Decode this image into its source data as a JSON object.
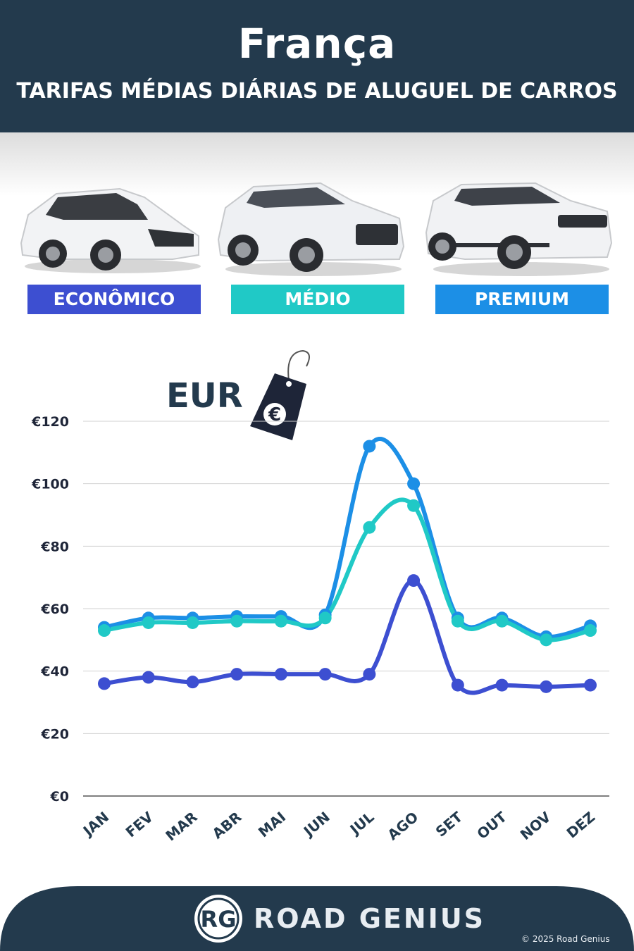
{
  "header": {
    "title": "França",
    "subtitle": "TARIFAS MÉDIAS DIÁRIAS DE ALUGUEL DE CARROS"
  },
  "categories": [
    {
      "label": "ECONÔMICO",
      "color": "#3d4fd1"
    },
    {
      "label": "MÉDIO",
      "color": "#20c9c6"
    },
    {
      "label": "PREMIUM",
      "color": "#1c8fe6"
    }
  ],
  "currency": {
    "label": "EUR",
    "tag_symbol": "€"
  },
  "chart_data": {
    "type": "line",
    "categories": [
      "JAN",
      "FEV",
      "MAR",
      "ABR",
      "MAI",
      "JUN",
      "JUL",
      "AGO",
      "SET",
      "OUT",
      "NOV",
      "DEZ"
    ],
    "ylim": [
      0,
      120
    ],
    "yticks": [
      0,
      20,
      40,
      60,
      80,
      100,
      120
    ],
    "ytick_labels": [
      "€0",
      "€20",
      "€40",
      "€60",
      "€80",
      "€100",
      "€120"
    ],
    "grid": true,
    "series": [
      {
        "name": "ECONÔMICO",
        "color": "#3d4fd1",
        "values": [
          36,
          38,
          36.5,
          39,
          39,
          39,
          39,
          69,
          35.5,
          35.5,
          35,
          35.5
        ]
      },
      {
        "name": "MÉDIO",
        "color": "#20c9c6",
        "values": [
          53,
          55.5,
          55.5,
          56,
          56,
          57,
          86,
          93,
          56,
          56,
          50,
          53
        ]
      },
      {
        "name": "PREMIUM",
        "color": "#1c8fe6",
        "values": [
          54,
          57,
          57,
          57.5,
          57.5,
          58,
          112,
          100,
          57,
          57,
          51,
          54.5
        ]
      }
    ]
  },
  "footer": {
    "logo_initials": "RG",
    "brand": "ROAD GENIUS",
    "copyright": "© 2025 Road Genius"
  }
}
